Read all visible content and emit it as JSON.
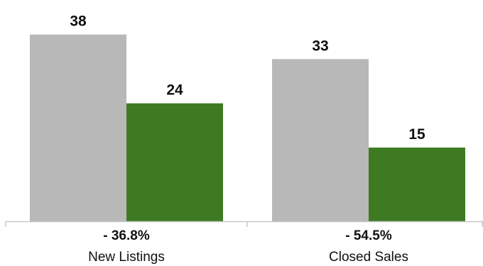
{
  "chart_data": {
    "type": "bar",
    "categories": [
      "New Listings",
      "Closed Sales"
    ],
    "series": [
      {
        "color": "#b8b8b8",
        "values": [
          38,
          33
        ]
      },
      {
        "color": "#3e7a22",
        "values": [
          24,
          15
        ]
      }
    ],
    "changes": [
      "- 36.8%",
      "- 54.5%"
    ],
    "ylim": [
      0,
      40
    ],
    "grid": false,
    "legend": "none",
    "axis_color": "#c8c8c8"
  }
}
